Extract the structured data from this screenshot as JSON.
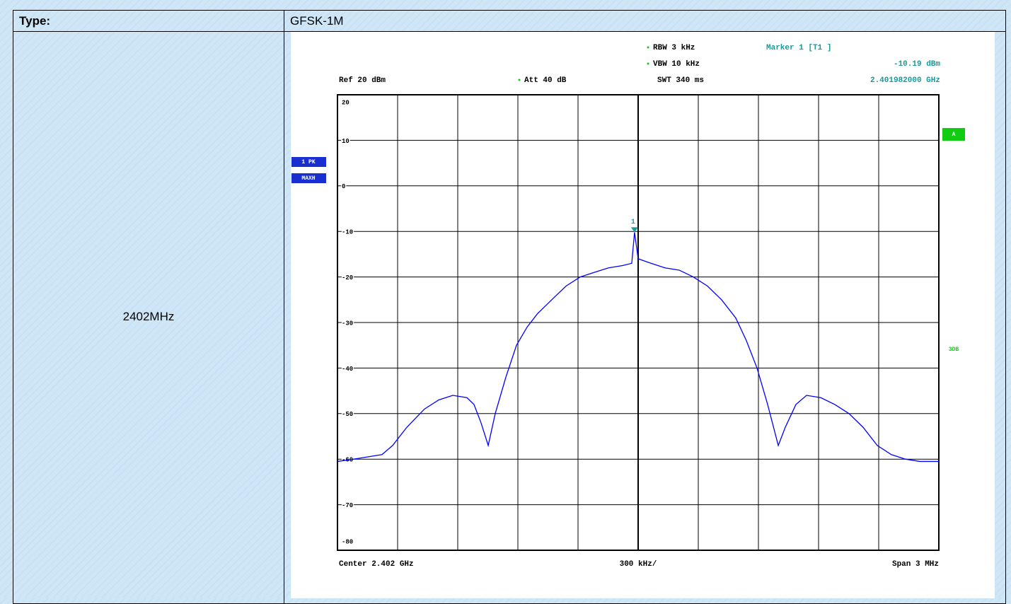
{
  "table": {
    "header": [
      "Type:",
      "GFSK-1M"
    ],
    "row_label": "2402MHz"
  },
  "chart_data": {
    "type": "line",
    "header": {
      "ref": "Ref  20 dBm",
      "att": "Att  40 dB",
      "rbw": "RBW 3 kHz",
      "vbw": "VBW 10 kHz",
      "swt": "SWT 340 ms",
      "marker": "Marker 1 [T1 ]",
      "marker_level": "-10.19 dBm",
      "marker_freq": "2.401982000 GHz"
    },
    "footer": {
      "center": "Center 2.402 GHz",
      "div": "300 kHz/",
      "span": "Span 3 MHz"
    },
    "side_labels": {
      "channel": "A",
      "bandwidth": "3DB"
    },
    "xlim": [
      2.4005,
      2.4035
    ],
    "xticks": [
      2.4005,
      2.4008,
      2.4011,
      2.4014,
      2.4017,
      2.402,
      2.4023,
      2.4026,
      2.4029,
      2.4032,
      2.4035
    ],
    "ylim": [
      -80,
      20
    ],
    "yticks": [
      20,
      10,
      0,
      -10,
      -20,
      -30,
      -40,
      -50,
      -60,
      -70,
      -80
    ],
    "grid": true,
    "series": [
      {
        "name": "1 PK",
        "detector": "MAXH",
        "color": "#0000ff",
        "x": [
          2.4005,
          2.400581,
          2.400722,
          2.400775,
          2.400846,
          2.400934,
          2.401005,
          2.401075,
          2.401146,
          2.401181,
          2.401216,
          2.401252,
          2.401287,
          2.40134,
          2.401393,
          2.401446,
          2.401499,
          2.401569,
          2.40164,
          2.401711,
          2.401781,
          2.401852,
          2.401922,
          2.401968,
          2.401982,
          2.402,
          2.402064,
          2.402134,
          2.402205,
          2.402275,
          2.402346,
          2.402416,
          2.402487,
          2.40254,
          2.402593,
          2.402646,
          2.402699,
          2.402734,
          2.402787,
          2.40284,
          2.402911,
          2.402981,
          2.403052,
          2.403122,
          2.403193,
          2.403263,
          2.403334,
          2.403405,
          2.4035
        ],
        "y": [
          -60.5,
          -60,
          -59,
          -57,
          -53,
          -49,
          -47,
          -46,
          -46.5,
          -48,
          -52,
          -57,
          -50,
          -42,
          -35,
          -31,
          -28,
          -25,
          -22,
          -20,
          -19,
          -18,
          -17.5,
          -17,
          -10.19,
          -16,
          -17,
          -18,
          -18.5,
          -20,
          -22,
          -25,
          -29,
          -34,
          -40,
          -48,
          -57,
          -53,
          -48,
          -46,
          -46.5,
          -48,
          -50,
          -53,
          -57,
          -59,
          -60,
          -60.5,
          -60.5
        ]
      }
    ],
    "marker": {
      "label": "1",
      "x": 2.401982,
      "y": -10.19
    }
  }
}
